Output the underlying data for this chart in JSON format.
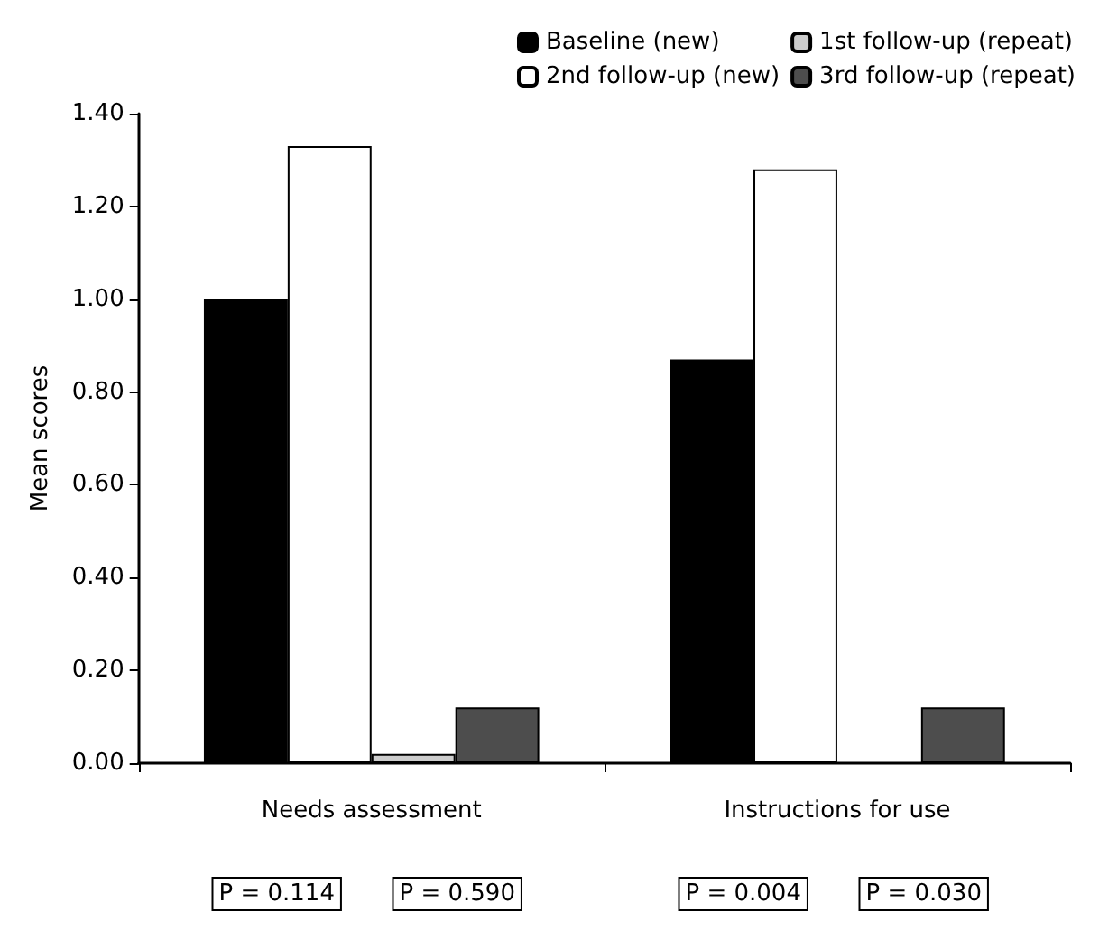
{
  "chart_data": {
    "type": "bar",
    "ylabel": "Mean scores",
    "categories": [
      "Needs assessment",
      "Instructions for use"
    ],
    "series": [
      {
        "name": "Baseline (new)",
        "color": "#000000",
        "values": [
          1.0,
          0.87
        ]
      },
      {
        "name": "2nd follow-up (new)",
        "color": "#ffffff",
        "values": [
          1.33,
          1.28
        ]
      },
      {
        "name": "1st follow-up (repeat)",
        "color": "#cccccc",
        "values": [
          0.02,
          0
        ]
      },
      {
        "name": "3rd follow-up (repeat)",
        "color": "#4d4d4d",
        "values": [
          0.12,
          0.12
        ]
      }
    ],
    "ylim": [
      0,
      1.4
    ],
    "yticks": [
      {
        "value": 0,
        "label": "0.00"
      },
      {
        "value": 0.2,
        "label": "0.20"
      },
      {
        "value": 0.4,
        "label": "0.40"
      },
      {
        "value": 0.6,
        "label": "0.60"
      },
      {
        "value": 0.8,
        "label": "0.80"
      },
      {
        "value": 1.0,
        "label": "1.00"
      },
      {
        "value": 1.2,
        "label": "1.20"
      },
      {
        "value": 1.4,
        "label": "1.40"
      }
    ],
    "grid": false,
    "legend": "top right",
    "annotations": [
      "P = 0.114",
      "P = 0.590",
      "P = 0.004",
      "P = 0.030"
    ]
  }
}
